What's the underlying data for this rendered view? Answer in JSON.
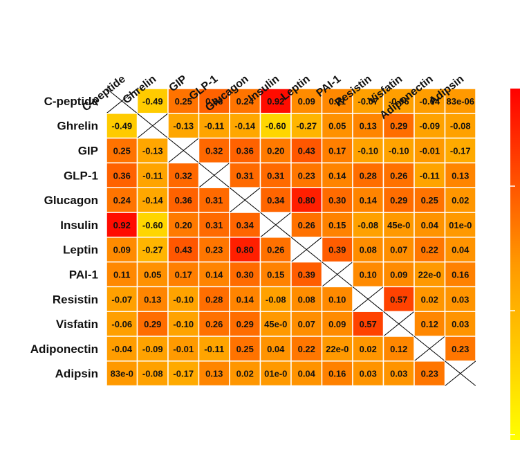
{
  "chart_data": {
    "type": "heatmap",
    "variables": [
      "C-peptide",
      "Ghrelin",
      "GIP",
      "GLP-1",
      "Glucagon",
      "Insulin",
      "Leptin",
      "PAI-1",
      "Resistin",
      "Visfatin",
      "Adiponectin",
      "Adipsin"
    ],
    "values": [
      [
        null,
        -0.49,
        0.25,
        0.36,
        0.24,
        0.92,
        0.09,
        0.11,
        -0.07,
        -0.06,
        -0.04,
        0.0
      ],
      [
        -0.49,
        null,
        -0.13,
        -0.11,
        -0.14,
        -0.6,
        -0.27,
        0.05,
        0.13,
        0.29,
        -0.09,
        -0.08
      ],
      [
        0.25,
        -0.13,
        null,
        0.32,
        0.36,
        0.2,
        0.43,
        0.17,
        -0.1,
        -0.1,
        -0.01,
        -0.17
      ],
      [
        0.36,
        -0.11,
        0.32,
        null,
        0.31,
        0.31,
        0.23,
        0.14,
        0.28,
        0.26,
        -0.11,
        0.13
      ],
      [
        0.24,
        -0.14,
        0.36,
        0.31,
        null,
        0.34,
        0.8,
        0.3,
        0.14,
        0.29,
        0.25,
        0.02
      ],
      [
        0.92,
        -0.6,
        0.2,
        0.31,
        0.34,
        null,
        0.26,
        0.15,
        -0.08,
        0.0,
        0.04,
        0.0
      ],
      [
        0.09,
        -0.27,
        0.43,
        0.23,
        0.8,
        0.26,
        null,
        0.39,
        0.08,
        0.07,
        0.22,
        0.04
      ],
      [
        0.11,
        0.05,
        0.17,
        0.14,
        0.3,
        0.15,
        0.39,
        null,
        0.1,
        0.09,
        0.0,
        0.16
      ],
      [
        -0.07,
        0.13,
        -0.1,
        0.28,
        0.14,
        -0.08,
        0.08,
        0.1,
        null,
        0.57,
        0.02,
        0.03
      ],
      [
        -0.06,
        0.29,
        -0.1,
        0.26,
        0.29,
        0.0,
        0.07,
        0.09,
        0.57,
        null,
        0.12,
        0.03
      ],
      [
        -0.04,
        -0.09,
        -0.01,
        -0.11,
        0.25,
        0.04,
        0.22,
        0.0,
        0.02,
        0.12,
        null,
        0.23
      ],
      [
        0.0,
        -0.08,
        -0.17,
        0.13,
        0.02,
        0.0,
        0.04,
        0.16,
        0.03,
        0.03,
        0.23,
        null
      ]
    ],
    "labels": [
      [
        "",
        "-0.49",
        "0.25",
        "0.36",
        "0.24",
        "0.92",
        "0.09",
        "0.11",
        "-0.07",
        "-0.06",
        "-0.04",
        "83e-06"
      ],
      [
        "-0.49",
        "",
        "-0.13",
        "-0.11",
        "-0.14",
        "-0.60",
        "-0.27",
        "0.05",
        "0.13",
        "0.29",
        "-0.09",
        "-0.08"
      ],
      [
        "0.25",
        "-0.13",
        "",
        "0.32",
        "0.36",
        "0.20",
        "0.43",
        "0.17",
        "-0.10",
        "-0.10",
        "-0.01",
        "-0.17"
      ],
      [
        "0.36",
        "-0.11",
        "0.32",
        "",
        "0.31",
        "0.31",
        "0.23",
        "0.14",
        "0.28",
        "0.26",
        "-0.11",
        "0.13"
      ],
      [
        "0.24",
        "-0.14",
        "0.36",
        "0.31",
        "",
        "0.34",
        "0.80",
        "0.30",
        "0.14",
        "0.29",
        "0.25",
        "0.02"
      ],
      [
        "0.92",
        "-0.60",
        "0.20",
        "0.31",
        "0.34",
        "",
        "0.26",
        "0.15",
        "-0.08",
        "45e-0",
        "0.04",
        "01e-0"
      ],
      [
        "0.09",
        "-0.27",
        "0.43",
        "0.23",
        "0.80",
        "0.26",
        "",
        "0.39",
        "0.08",
        "0.07",
        "0.22",
        "0.04"
      ],
      [
        "0.11",
        "0.05",
        "0.17",
        "0.14",
        "0.30",
        "0.15",
        "0.39",
        "",
        "0.10",
        "0.09",
        "22e-0",
        "0.16"
      ],
      [
        "-0.07",
        "0.13",
        "-0.10",
        "0.28",
        "0.14",
        "-0.08",
        "0.08",
        "0.10",
        "",
        "0.57",
        "0.02",
        "0.03"
      ],
      [
        "-0.06",
        "0.29",
        "-0.10",
        "0.26",
        "0.29",
        "45e-0",
        "0.07",
        "0.09",
        "0.57",
        "",
        "0.12",
        "0.03"
      ],
      [
        "-0.04",
        "-0.09",
        "-0.01",
        "-0.11",
        "0.25",
        "0.04",
        "0.22",
        "22e-0",
        "0.02",
        "0.12",
        "",
        "0.23"
      ],
      [
        "83e-0",
        "-0.08",
        "-0.17",
        "0.13",
        "0.02",
        "01e-0",
        "0.04",
        "0.16",
        "0.03",
        "0.03",
        "0.23",
        ""
      ]
    ],
    "color_scale": {
      "low": "#ffff00",
      "mid": "#ff9900",
      "high": "#ff0000",
      "range": [
        -1,
        1
      ]
    },
    "diagonal": "cross",
    "legend": "right"
  }
}
